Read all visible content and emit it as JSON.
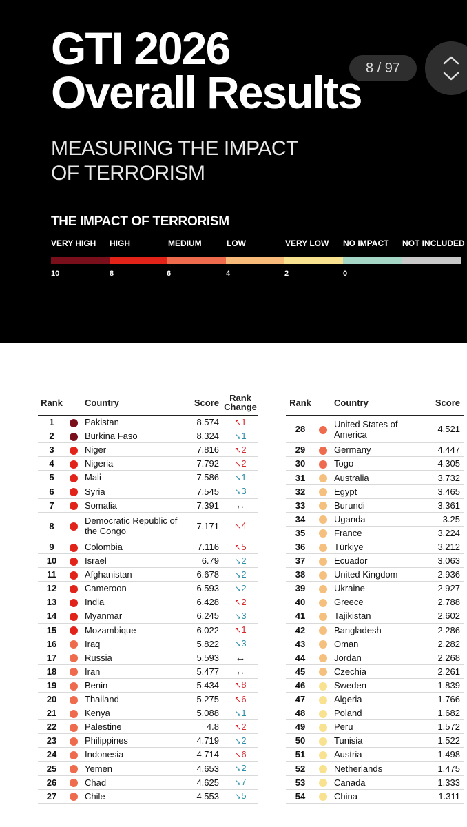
{
  "header": {
    "title_line1": "GTI 2026",
    "title_line2": "Overall Results",
    "subtitle_line1": "MEASURING THE IMPACT",
    "subtitle_line2": "OF TERRORISM",
    "page_indicator": "8 / 97"
  },
  "legend": {
    "title": "THE IMPACT OF TERRORISM",
    "categories": [
      {
        "label": "VERY HIGH",
        "color": "#7a0f1c"
      },
      {
        "label": "HIGH",
        "color": "#e2231a"
      },
      {
        "label": "MEDIUM",
        "color": "#ee6b4d"
      },
      {
        "label": "LOW",
        "color": "#f7ba78"
      },
      {
        "label": "VERY LOW",
        "color": "#f9e28f"
      },
      {
        "label": "NO IMPACT",
        "color": "#a6d6c6"
      },
      {
        "label": "NOT INCLUDED",
        "color": "#c9c9c9"
      }
    ],
    "ticks": [
      "10",
      "8",
      "6",
      "4",
      "2",
      "0"
    ]
  },
  "table_left": {
    "headers": {
      "rank": "Rank",
      "country": "Country",
      "score": "Score",
      "change_line1": "Rank",
      "change_line2": "Change"
    },
    "rows": [
      {
        "rank": "1",
        "country": "Pakistan",
        "score": "8.574",
        "level": "very-high",
        "dir": "up",
        "change": "1"
      },
      {
        "rank": "2",
        "country": "Burkina Faso",
        "score": "8.324",
        "level": "very-high",
        "dir": "down",
        "change": "1"
      },
      {
        "rank": "3",
        "country": "Niger",
        "score": "7.816",
        "level": "high",
        "dir": "up",
        "change": "2"
      },
      {
        "rank": "4",
        "country": "Nigeria",
        "score": "7.792",
        "level": "high",
        "dir": "up",
        "change": "2"
      },
      {
        "rank": "5",
        "country": "Mali",
        "score": "7.586",
        "level": "high",
        "dir": "down",
        "change": "1"
      },
      {
        "rank": "6",
        "country": "Syria",
        "score": "7.545",
        "level": "high",
        "dir": "down",
        "change": "3"
      },
      {
        "rank": "7",
        "country": "Somalia",
        "score": "7.391",
        "level": "high",
        "dir": "same",
        "change": ""
      },
      {
        "rank": "8",
        "country": "Democratic Republic of the Congo",
        "score": "7.171",
        "level": "high",
        "dir": "up",
        "change": "4"
      },
      {
        "rank": "9",
        "country": "Colombia",
        "score": "7.116",
        "level": "high",
        "dir": "up",
        "change": "5"
      },
      {
        "rank": "10",
        "country": "Israel",
        "score": "6.79",
        "level": "high",
        "dir": "down",
        "change": "2"
      },
      {
        "rank": "11",
        "country": "Afghanistan",
        "score": "6.678",
        "level": "high",
        "dir": "down",
        "change": "2"
      },
      {
        "rank": "12",
        "country": "Cameroon",
        "score": "6.593",
        "level": "high",
        "dir": "down",
        "change": "2"
      },
      {
        "rank": "13",
        "country": "India",
        "score": "6.428",
        "level": "high",
        "dir": "up",
        "change": "2"
      },
      {
        "rank": "14",
        "country": "Myanmar",
        "score": "6.245",
        "level": "high",
        "dir": "down",
        "change": "3"
      },
      {
        "rank": "15",
        "country": "Mozambique",
        "score": "6.022",
        "level": "high",
        "dir": "up",
        "change": "1"
      },
      {
        "rank": "16",
        "country": "Iraq",
        "score": "5.822",
        "level": "medium",
        "dir": "down",
        "change": "3"
      },
      {
        "rank": "17",
        "country": "Russia",
        "score": "5.593",
        "level": "medium",
        "dir": "same",
        "change": ""
      },
      {
        "rank": "18",
        "country": "Iran",
        "score": "5.477",
        "level": "medium",
        "dir": "same",
        "change": ""
      },
      {
        "rank": "19",
        "country": "Benin",
        "score": "5.434",
        "level": "medium",
        "dir": "up",
        "change": "8"
      },
      {
        "rank": "20",
        "country": "Thailand",
        "score": "5.275",
        "level": "medium",
        "dir": "up",
        "change": "6"
      },
      {
        "rank": "21",
        "country": "Kenya",
        "score": "5.088",
        "level": "medium",
        "dir": "down",
        "change": "1"
      },
      {
        "rank": "22",
        "country": "Palestine",
        "score": "4.8",
        "level": "medium",
        "dir": "up",
        "change": "2"
      },
      {
        "rank": "23",
        "country": "Philippines",
        "score": "4.719",
        "level": "medium",
        "dir": "down",
        "change": "2"
      },
      {
        "rank": "24",
        "country": "Indonesia",
        "score": "4.714",
        "level": "medium",
        "dir": "up",
        "change": "6"
      },
      {
        "rank": "25",
        "country": "Yemen",
        "score": "4.653",
        "level": "medium",
        "dir": "down",
        "change": "2"
      },
      {
        "rank": "26",
        "country": "Chad",
        "score": "4.625",
        "level": "medium",
        "dir": "down",
        "change": "7"
      },
      {
        "rank": "27",
        "country": "Chile",
        "score": "4.553",
        "level": "medium",
        "dir": "down",
        "change": "5"
      }
    ]
  },
  "table_right": {
    "headers": {
      "rank": "Rank",
      "country": "Country",
      "score": "Score"
    },
    "rows": [
      {
        "rank": "28",
        "country": "United States of America",
        "score": "4.521",
        "level": "medium"
      },
      {
        "rank": "29",
        "country": "Germany",
        "score": "4.447",
        "level": "medium"
      },
      {
        "rank": "30",
        "country": "Togo",
        "score": "4.305",
        "level": "medium"
      },
      {
        "rank": "31",
        "country": "Australia",
        "score": "3.732",
        "level": "low"
      },
      {
        "rank": "32",
        "country": "Egypt",
        "score": "3.465",
        "level": "low"
      },
      {
        "rank": "33",
        "country": "Burundi",
        "score": "3.361",
        "level": "low"
      },
      {
        "rank": "34",
        "country": "Uganda",
        "score": "3.25",
        "level": "low"
      },
      {
        "rank": "35",
        "country": "France",
        "score": "3.224",
        "level": "low"
      },
      {
        "rank": "36",
        "country": "Türkiye",
        "score": "3.212",
        "level": "low"
      },
      {
        "rank": "37",
        "country": "Ecuador",
        "score": "3.063",
        "level": "low"
      },
      {
        "rank": "38",
        "country": "United Kingdom",
        "score": "2.936",
        "level": "low"
      },
      {
        "rank": "39",
        "country": "Ukraine",
        "score": "2.927",
        "level": "low"
      },
      {
        "rank": "40",
        "country": "Greece",
        "score": "2.788",
        "level": "low"
      },
      {
        "rank": "41",
        "country": "Tajikistan",
        "score": "2.602",
        "level": "low"
      },
      {
        "rank": "42",
        "country": "Bangladesh",
        "score": "2.286",
        "level": "low"
      },
      {
        "rank": "43",
        "country": "Oman",
        "score": "2.282",
        "level": "low"
      },
      {
        "rank": "44",
        "country": "Jordan",
        "score": "2.268",
        "level": "low"
      },
      {
        "rank": "45",
        "country": "Czechia",
        "score": "2.261",
        "level": "low"
      },
      {
        "rank": "46",
        "country": "Sweden",
        "score": "1.839",
        "level": "very-low"
      },
      {
        "rank": "47",
        "country": "Algeria",
        "score": "1.766",
        "level": "very-low"
      },
      {
        "rank": "48",
        "country": "Poland",
        "score": "1.682",
        "level": "very-low"
      },
      {
        "rank": "49",
        "country": "Peru",
        "score": "1.572",
        "level": "very-low"
      },
      {
        "rank": "50",
        "country": "Tunisia",
        "score": "1.522",
        "level": "very-low"
      },
      {
        "rank": "51",
        "country": "Austria",
        "score": "1.498",
        "level": "very-low"
      },
      {
        "rank": "52",
        "country": "Netherlands",
        "score": "1.475",
        "level": "very-low"
      },
      {
        "rank": "53",
        "country": "Canada",
        "score": "1.333",
        "level": "very-low"
      },
      {
        "rank": "54",
        "country": "China",
        "score": "1.311",
        "level": "very-low"
      }
    ]
  },
  "level_colors": {
    "very-high": "#7a0f1c",
    "high": "#e2231a",
    "medium": "#ee6b4d",
    "low": "#f5c07e",
    "very-low": "#f9e28f"
  },
  "change_colors": {
    "up": "#d8282d",
    "down": "#2a8da8",
    "same": "#111111"
  }
}
